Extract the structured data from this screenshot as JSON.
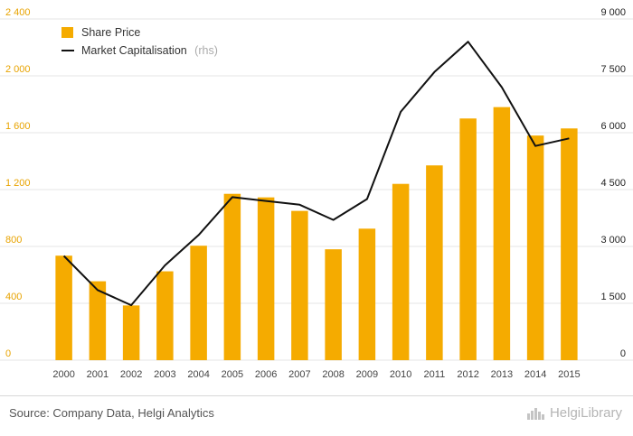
{
  "chart_data": {
    "type": "bar+line",
    "categories": [
      "2000",
      "2001",
      "2002",
      "2003",
      "2004",
      "2005",
      "2006",
      "2007",
      "2008",
      "2009",
      "2010",
      "2011",
      "2012",
      "2013",
      "2014",
      "2015"
    ],
    "series": [
      {
        "name": "Share Price",
        "type": "bar",
        "axis": "left",
        "color": "#f5ab00",
        "values": [
          735,
          555,
          385,
          625,
          805,
          1170,
          1145,
          1050,
          780,
          925,
          1240,
          1370,
          1700,
          1780,
          1580,
          1630
        ]
      },
      {
        "name": "Market Capitalisation",
        "type": "line",
        "axis": "right",
        "color": "#111111",
        "values": [
          2750,
          1850,
          1450,
          2500,
          3300,
          4300,
          4200,
          4100,
          3700,
          4250,
          6550,
          7600,
          8400,
          7200,
          5650,
          5850
        ]
      }
    ],
    "legend_note": "(rhs)",
    "ylim_left": [
      0,
      2400
    ],
    "ylim_right": [
      0,
      9000
    ],
    "yticks_left": [
      "0",
      "400",
      "800",
      "1 200",
      "1 600",
      "2 000",
      "2 400"
    ],
    "yticks_right": [
      "0",
      "1 500",
      "3 000",
      "4 500",
      "6 000",
      "7 500",
      "9 000"
    ],
    "grid": true,
    "legend_position": "top-left"
  },
  "footer": {
    "source": "Source: Company Data, Helgi Analytics",
    "brand": "HelgiLibrary"
  }
}
